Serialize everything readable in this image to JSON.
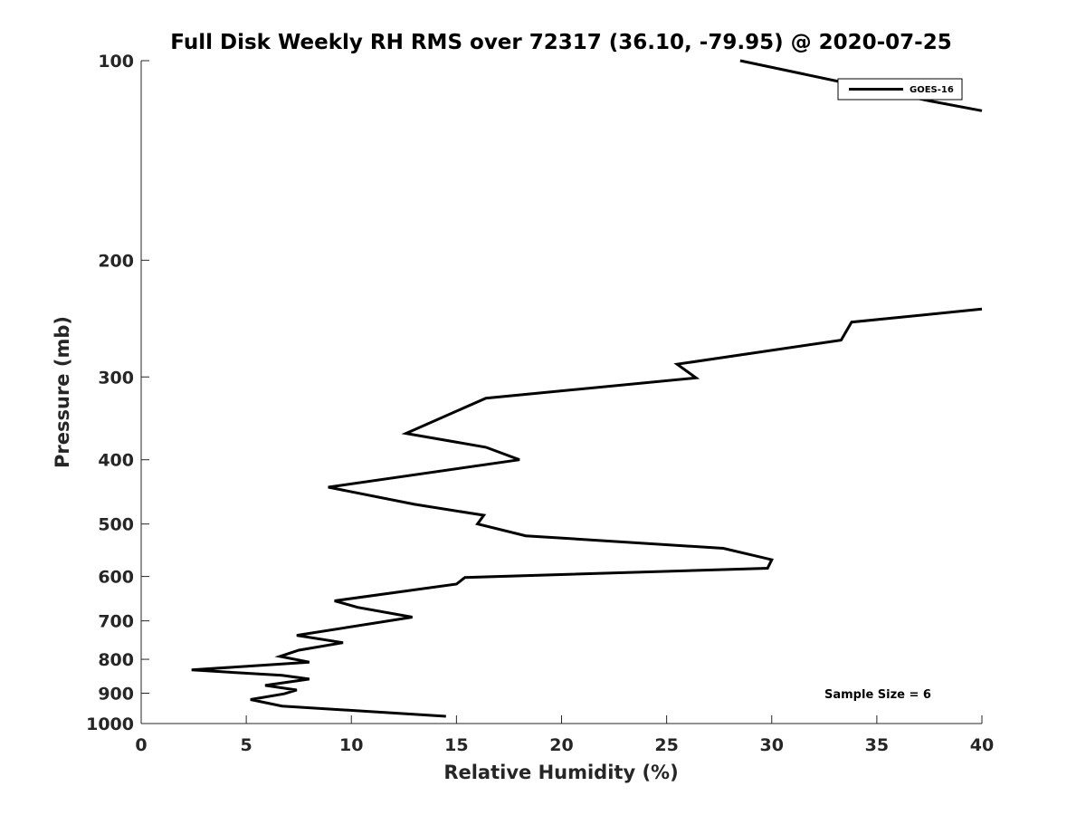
{
  "chart_data": {
    "type": "line",
    "title": "Full Disk Weekly RH RMS over 72317 (36.10, -79.95) @ 2020-07-25",
    "xlabel": "Relative Humidity (%)",
    "ylabel": "Pressure (mb)",
    "xlim": [
      0,
      40
    ],
    "ylim": [
      100,
      1000
    ],
    "y_scale": "log",
    "y_reversed": true,
    "x_ticks": [
      "0",
      "5",
      "10",
      "15",
      "20",
      "25",
      "30",
      "35",
      "40"
    ],
    "y_ticks": [
      "100",
      "200",
      "300",
      "400",
      "500",
      "600",
      "700",
      "800",
      "900",
      "1000"
    ],
    "grid": false,
    "legend_position": "top-right",
    "series": [
      {
        "name": "GOES-16",
        "color": "#000000",
        "points": [
          [
            28.5,
            100
          ],
          [
            33.5,
            108
          ],
          [
            37.5,
            115
          ],
          [
            40.0,
            119
          ],
          [
            null,
            null
          ],
          [
            40.0,
            237
          ],
          [
            33.8,
            248
          ],
          [
            33.3,
            264
          ],
          [
            25.5,
            287
          ],
          [
            26.4,
            301
          ],
          [
            16.4,
            323
          ],
          [
            12.6,
            365
          ],
          [
            16.4,
            383
          ],
          [
            18.0,
            400
          ],
          [
            8.9,
            440
          ],
          [
            13.0,
            467
          ],
          [
            16.3,
            485
          ],
          [
            16.0,
            500
          ],
          [
            18.3,
            521
          ],
          [
            27.7,
            544
          ],
          [
            30.0,
            566
          ],
          [
            29.8,
            583
          ],
          [
            15.4,
            602
          ],
          [
            15.0,
            616
          ],
          [
            9.2,
            653
          ],
          [
            10.3,
            668
          ],
          [
            12.9,
            691
          ],
          [
            7.4,
            736
          ],
          [
            9.6,
            755
          ],
          [
            7.5,
            775
          ],
          [
            6.6,
            792
          ],
          [
            8.0,
            808
          ],
          [
            2.4,
            830
          ],
          [
            6.7,
            846
          ],
          [
            8.0,
            857
          ],
          [
            5.9,
            876
          ],
          [
            7.4,
            890
          ],
          [
            6.8,
            902
          ],
          [
            5.2,
            920
          ],
          [
            6.7,
            941
          ],
          [
            14.5,
            975
          ]
        ]
      }
    ],
    "annotations": [
      "Sample Size = 6"
    ]
  }
}
